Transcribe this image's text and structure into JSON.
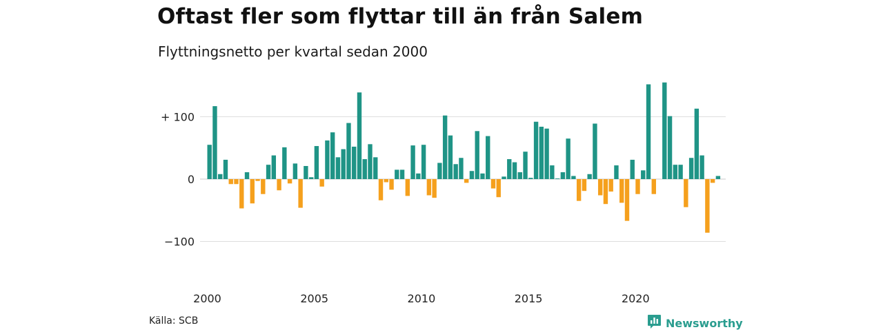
{
  "header": {
    "title": "Oftast fler som flyttar till än från Salem",
    "subtitle": "Flyttningsnetto per kvartal sedan 2000"
  },
  "footer": {
    "source": "Källa: SCB",
    "brand": "Newsworthy",
    "brand_icon": "newsworthy-logo-icon"
  },
  "colors": {
    "positive": "#1f9486",
    "negative": "#f5a01d",
    "grid": "#dddddd",
    "brand": "#2a9d8f"
  },
  "chart_data": {
    "type": "bar",
    "x_start": "2000 Q1",
    "x_tick_labels": [
      "2000",
      "2005",
      "2010",
      "2015",
      "2020"
    ],
    "y_tick_labels": [
      "+ 100",
      "0",
      "−100"
    ],
    "y_ticks": [
      100,
      0,
      -100
    ],
    "ylim": [
      -140,
      160
    ],
    "grid": true,
    "values": [
      55,
      117,
      8,
      31,
      -8,
      -8,
      -47,
      11,
      -39,
      -3,
      -24,
      23,
      38,
      -18,
      51,
      -7,
      25,
      -46,
      21,
      3,
      53,
      -12,
      62,
      75,
      35,
      48,
      90,
      52,
      139,
      32,
      56,
      35,
      -34,
      -5,
      -17,
      15,
      15,
      -27,
      54,
      9,
      55,
      -26,
      -30,
      26,
      102,
      70,
      24,
      34,
      -6,
      13,
      77,
      9,
      69,
      -15,
      -29,
      4,
      32,
      27,
      11,
      44,
      2,
      92,
      84,
      81,
      22,
      1,
      11,
      65,
      5,
      -35,
      -19,
      8,
      89,
      -26,
      -40,
      -20,
      22,
      -38,
      -67,
      31,
      -24,
      14,
      152,
      -24,
      0,
      155,
      101,
      23,
      23,
      -45,
      34,
      113,
      38,
      -86,
      -6,
      5
    ]
  }
}
